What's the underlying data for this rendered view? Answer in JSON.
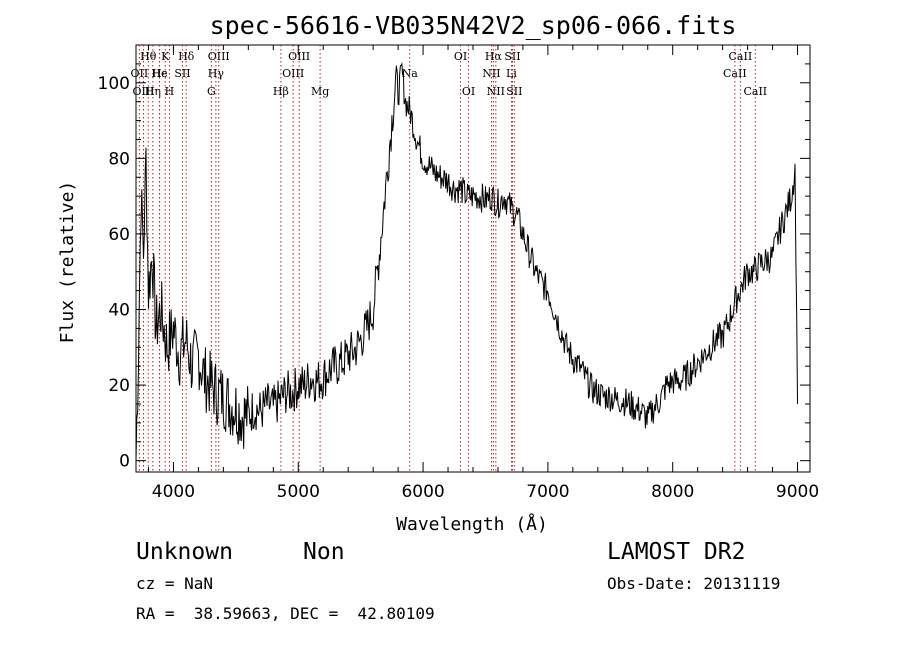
{
  "chart_data": {
    "type": "line",
    "title": "spec-56616-VB035N42V2_sp06-066.fits",
    "xlabel": "Wavelength (Å)",
    "ylabel": "Flux (relative)",
    "xlim": [
      3700,
      9100
    ],
    "ylim": [
      -3,
      110
    ],
    "x_ticks": [
      4000,
      5000,
      6000,
      7000,
      8000,
      9000
    ],
    "y_ticks": [
      0,
      20,
      40,
      60,
      80,
      100
    ],
    "grid": false,
    "series": [
      {
        "x": [
          3700,
          3720,
          3740,
          3760,
          3780,
          3800,
          3830,
          3860,
          3900,
          3950,
          4000,
          4050,
          4100,
          4150,
          4200,
          4250,
          4300,
          4350,
          4400,
          4450,
          4500,
          4550,
          4600,
          4650,
          4700,
          4750,
          4800,
          4850,
          4900,
          4950,
          5000,
          5050,
          5100,
          5150,
          5200,
          5250,
          5300,
          5350,
          5400,
          5450,
          5500,
          5550,
          5600,
          5650,
          5700,
          5750,
          5780,
          5800,
          5830,
          5860,
          5900,
          5950,
          6000,
          6050,
          6100,
          6150,
          6200,
          6250,
          6300,
          6350,
          6400,
          6450,
          6500,
          6550,
          6600,
          6650,
          6700,
          6750,
          6800,
          6850,
          6900,
          6950,
          7000,
          7050,
          7100,
          7150,
          7200,
          7250,
          7300,
          7350,
          7400,
          7450,
          7500,
          7550,
          7600,
          7650,
          7700,
          7750,
          7800,
          7850,
          7900,
          7950,
          8000,
          8050,
          8100,
          8150,
          8200,
          8250,
          8300,
          8350,
          8400,
          8450,
          8500,
          8550,
          8600,
          8650,
          8700,
          8750,
          8800,
          8850,
          8900,
          8950,
          8980,
          9000
        ],
        "y": [
          0,
          30,
          70,
          55,
          80,
          45,
          55,
          35,
          40,
          30,
          35,
          28,
          32,
          25,
          28,
          22,
          20,
          18,
          17,
          15,
          14,
          12,
          12,
          14,
          13,
          15,
          14,
          16,
          18,
          18,
          20,
          20,
          22,
          21,
          22,
          24,
          25,
          26,
          28,
          29,
          32,
          35,
          40,
          55,
          72,
          90,
          100,
          97,
          103,
          95,
          92,
          85,
          80,
          78,
          76,
          75,
          74,
          72,
          72,
          70,
          70,
          70,
          69,
          70,
          68,
          70,
          67,
          65,
          60,
          55,
          50,
          47,
          45,
          40,
          35,
          30,
          27,
          25,
          22,
          19,
          18,
          17,
          17,
          16,
          16,
          15,
          14,
          13,
          11,
          14,
          16,
          20,
          21,
          21,
          22,
          24,
          26,
          28,
          30,
          32,
          33,
          37,
          42,
          46,
          50,
          50,
          52,
          53,
          54,
          60,
          65,
          70,
          77,
          15
        ]
      }
    ],
    "lines": [
      {
        "label": "Hθ",
        "x": 3798,
        "row": 0
      },
      {
        "label": "OII",
        "x": 3727,
        "row": 1
      },
      {
        "label": "OIII",
        "x": 3760,
        "row": 2
      },
      {
        "label": "K",
        "x": 3934,
        "row": 0
      },
      {
        "label": "Hε",
        "x": 3889,
        "row": 1
      },
      {
        "label": "Hη",
        "x": 3835,
        "row": 2
      },
      {
        "label": "H",
        "x": 3968,
        "row": 2
      },
      {
        "label": "He",
        "x": 3888,
        "row": 1
      },
      {
        "label": "SII",
        "x": 4072,
        "row": 1
      },
      {
        "label": "Hδ",
        "x": 4102,
        "row": 0
      },
      {
        "label": "OIII",
        "x": 4363,
        "row": 0
      },
      {
        "label": "Hγ",
        "x": 4340,
        "row": 1
      },
      {
        "label": "G",
        "x": 4304,
        "row": 2
      },
      {
        "label": "OIII",
        "x": 5007,
        "row": 0
      },
      {
        "label": "OIII",
        "x": 4959,
        "row": 1
      },
      {
        "label": "Hβ",
        "x": 4861,
        "row": 2
      },
      {
        "label": "Mg",
        "x": 5175,
        "row": 2
      },
      {
        "label": "Na",
        "x": 5893,
        "row": 1
      },
      {
        "label": "OI",
        "x": 6300,
        "row": 0
      },
      {
        "label": "OI",
        "x": 6364,
        "row": 2
      },
      {
        "label": "Hα",
        "x": 6563,
        "row": 0
      },
      {
        "label": "NII",
        "x": 6548,
        "row": 1
      },
      {
        "label": "NII",
        "x": 6583,
        "row": 2
      },
      {
        "label": "SII",
        "x": 6716,
        "row": 0
      },
      {
        "label": "Li",
        "x": 6708,
        "row": 1
      },
      {
        "label": "SII",
        "x": 6731,
        "row": 2
      },
      {
        "label": "CaII",
        "x": 8542,
        "row": 0
      },
      {
        "label": "CaII",
        "x": 8498,
        "row": 1
      },
      {
        "label": "CaII",
        "x": 8662,
        "row": 2
      }
    ]
  },
  "info": {
    "class": "Unknown",
    "subclass": "Non",
    "survey": "LAMOST DR2",
    "cz": "cz = NaN",
    "obs_date": "Obs-Date: 20131119",
    "radec": "RA =  38.59663, DEC =  42.80109"
  }
}
